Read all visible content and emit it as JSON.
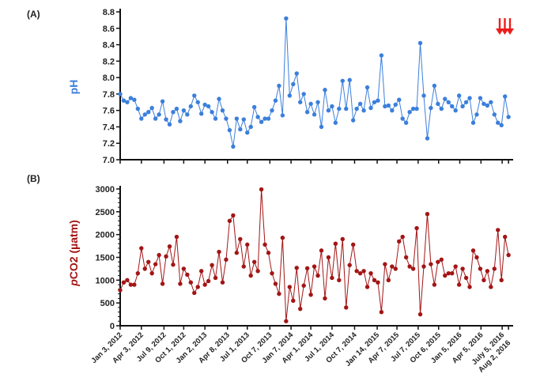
{
  "chart_data": [
    {
      "type": "line",
      "panel_label": "(A)",
      "ylabel": "pH",
      "color": "#3b7fdc",
      "ylim": [
        7.0,
        8.8
      ],
      "yticks": [
        "7.0",
        "7.2",
        "7.4",
        "7.6",
        "7.8",
        "8.0",
        "8.2",
        "8.4",
        "8.6",
        "8.8"
      ],
      "x_unit": "months since Jan 3, 2012",
      "x_step": 0.5,
      "values": [
        7.8,
        7.72,
        7.7,
        7.75,
        7.73,
        7.62,
        7.5,
        7.55,
        7.58,
        7.63,
        7.5,
        7.55,
        7.71,
        7.49,
        7.43,
        7.58,
        7.62,
        7.47,
        7.6,
        7.55,
        7.65,
        7.78,
        7.7,
        7.56,
        7.67,
        7.65,
        7.58,
        7.5,
        7.74,
        7.6,
        7.5,
        7.36,
        7.16,
        7.5,
        7.37,
        7.49,
        7.33,
        7.4,
        7.64,
        7.52,
        7.46,
        7.5,
        7.5,
        7.6,
        7.72,
        7.9,
        7.54,
        8.72,
        7.78,
        7.92,
        8.05,
        7.7,
        7.8,
        7.58,
        7.68,
        7.55,
        7.7,
        7.4,
        7.85,
        7.6,
        7.65,
        7.45,
        7.62,
        7.96,
        7.62,
        7.97,
        7.48,
        7.62,
        7.68,
        7.6,
        7.88,
        7.63,
        7.7,
        7.72,
        8.27,
        7.65,
        7.66,
        7.6,
        7.67,
        7.73,
        7.5,
        7.45,
        7.58,
        7.62,
        7.62,
        8.42,
        7.78,
        7.26,
        7.63,
        7.9,
        7.68,
        7.62,
        7.74,
        7.7,
        7.65,
        7.6,
        7.78,
        7.65,
        7.7,
        7.75,
        7.45,
        7.55,
        7.75,
        7.68,
        7.66,
        7.7,
        7.55,
        7.45,
        7.42,
        7.77,
        7.52
      ]
    },
    {
      "type": "line",
      "panel_label": "(B)",
      "ylabel_italic": "p",
      "ylabel": "CO2 (µatm)",
      "color": "#a31515",
      "ylim": [
        0,
        3000
      ],
      "yticks": [
        "0",
        "500",
        "1000",
        "1500",
        "2000",
        "2500",
        "3000"
      ],
      "x_unit": "months since Jan 3, 2012",
      "x_step": 0.5,
      "values": [
        780,
        950,
        1000,
        900,
        900,
        1150,
        1700,
        1250,
        1400,
        1150,
        1350,
        1550,
        920,
        1520,
        1740,
        1340,
        1950,
        920,
        1250,
        1120,
        950,
        720,
        850,
        1200,
        900,
        980,
        1330,
        1050,
        1620,
        950,
        1450,
        2300,
        2420,
        1600,
        1900,
        1300,
        1780,
        1100,
        1400,
        1200,
        2990,
        1780,
        1600,
        1150,
        920,
        700,
        1930,
        100,
        850,
        550,
        1270,
        370,
        880,
        1260,
        680,
        1300,
        1100,
        1650,
        600,
        1500,
        1050,
        1800,
        1000,
        1900,
        400,
        1330,
        1780,
        1200,
        1150,
        1200,
        850,
        1150,
        1000,
        950,
        300,
        1350,
        1000,
        1300,
        1250,
        1850,
        1950,
        1500,
        1300,
        1250,
        2140,
        250,
        1300,
        2450,
        1350,
        900,
        1400,
        1450,
        1100,
        1150,
        1150,
        1300,
        900,
        1250,
        1050,
        850,
        1650,
        1500,
        1250,
        1000,
        1200,
        850,
        1250,
        2100,
        1000,
        1950,
        1550
      ]
    }
  ],
  "x_axis": {
    "xlim": [
      0,
      55
    ],
    "ticks": [
      {
        "label": "Jan 3, 2012",
        "x": 0
      },
      {
        "label": "Apr 3, 2012",
        "x": 3
      },
      {
        "label": "Jul 9, 2012",
        "x": 6.2
      },
      {
        "label": "Oct 1, 2012",
        "x": 9
      },
      {
        "label": "Jan 2, 2013",
        "x": 12
      },
      {
        "label": "Apr 8, 2013",
        "x": 15.2
      },
      {
        "label": "Jul 1, 2013",
        "x": 18
      },
      {
        "label": "Oct 7, 2013",
        "x": 21.2
      },
      {
        "label": "Jan 7, 2014",
        "x": 24.2
      },
      {
        "label": "Apr 1, 2014",
        "x": 27
      },
      {
        "label": "Jul 1, 2014",
        "x": 30
      },
      {
        "label": "Oct 7, 2014",
        "x": 33.2
      },
      {
        "label": "Jan 14, 2015",
        "x": 36.4
      },
      {
        "label": "Apr 7, 2015",
        "x": 39.2
      },
      {
        "label": "Jul 7, 2015",
        "x": 42.2
      },
      {
        "label": "Oct 6, 2015",
        "x": 45.1
      },
      {
        "label": "Jan 5, 2016",
        "x": 48.1
      },
      {
        "label": "Apr 5, 2016",
        "x": 51.1
      },
      {
        "label": "July 5, 2016",
        "x": 54.1
      },
      {
        "label": "Aug 2, 2016",
        "x": 55
      }
    ]
  },
  "annotation": {
    "arrows": 3,
    "color": "#ee1c1c",
    "icon": "down-arrows-icon"
  }
}
